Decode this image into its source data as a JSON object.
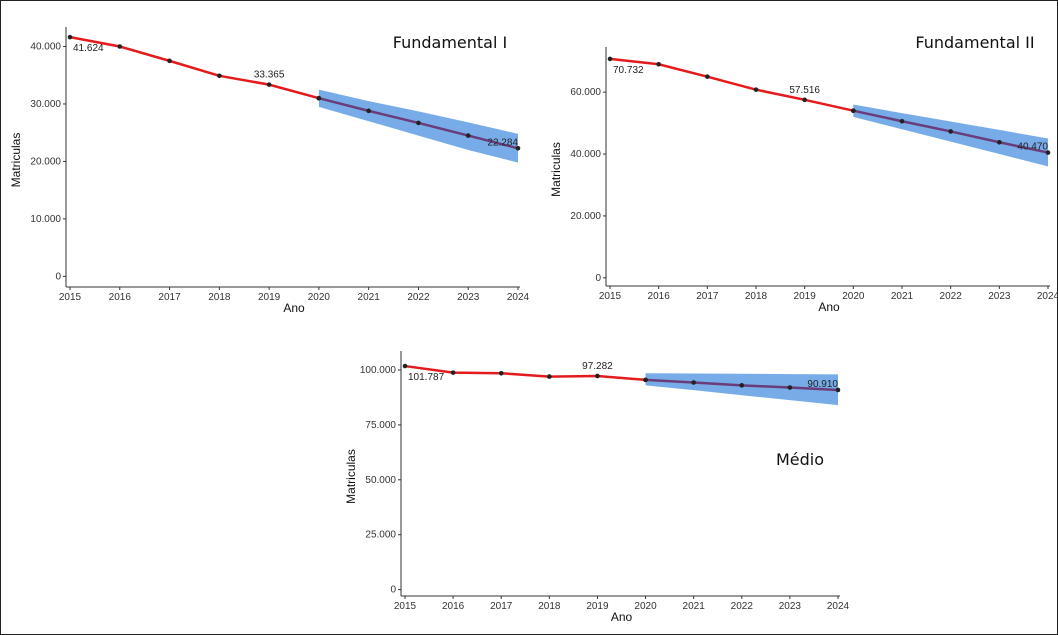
{
  "chart_data": [
    {
      "type": "line",
      "title": "Fundamental I",
      "xlabel": "Ano",
      "ylabel": "Matriculas",
      "x": [
        2015,
        2016,
        2017,
        2018,
        2019,
        2020,
        2021,
        2022,
        2023,
        2024
      ],
      "xlim": [
        2015,
        2024
      ],
      "xticks": [
        2015,
        2016,
        2017,
        2018,
        2019,
        2020,
        2021,
        2022,
        2023,
        2024
      ],
      "ylim": [
        -1500,
        42000
      ],
      "yticks": [
        0,
        {
          "value": 10000,
          "label": "10.000"
        },
        {
          "value": 20000,
          "label": "20.000"
        },
        {
          "value": 30000,
          "label": "30.000"
        },
        {
          "value": 40000,
          "label": "40.000"
        }
      ],
      "series": [
        {
          "color": "#e41a1c",
          "values": [
            41624,
            40000,
            37500,
            34900,
            33365,
            31000,
            null,
            null,
            null,
            null
          ],
          "value_labels": [
            "41.624",
            null,
            null,
            null,
            "33.365",
            null,
            null,
            null,
            null,
            null
          ]
        },
        {
          "color": "#6a3d7a",
          "values": [
            null,
            null,
            null,
            null,
            null,
            31000,
            28800,
            26700,
            24500,
            22284
          ],
          "value_labels": [
            null,
            null,
            null,
            null,
            null,
            null,
            null,
            null,
            null,
            "22.284"
          ]
        }
      ],
      "band": {
        "color": "#4a90e2",
        "lower": [
          null,
          null,
          null,
          null,
          null,
          29500,
          27000,
          24500,
          22000,
          19800
        ],
        "upper": [
          null,
          null,
          null,
          null,
          null,
          32500,
          30500,
          28700,
          26800,
          24800
        ]
      }
    },
    {
      "type": "line",
      "title": "Fundamental II",
      "xlabel": "Ano",
      "ylabel": "Matriculas",
      "x": [
        2015,
        2016,
        2017,
        2018,
        2019,
        2020,
        2021,
        2022,
        2023,
        2024
      ],
      "xlim": [
        2015,
        2024
      ],
      "xticks": [
        2015,
        2016,
        2017,
        2018,
        2019,
        2020,
        2021,
        2022,
        2023,
        2024
      ],
      "ylim": [
        -2000,
        72000
      ],
      "yticks": [
        0,
        {
          "value": 20000,
          "label": "20.000"
        },
        {
          "value": 40000,
          "label": "40.000"
        },
        {
          "value": 60000,
          "label": "60.000"
        }
      ],
      "series": [
        {
          "color": "#e41a1c",
          "values": [
            70732,
            69000,
            65000,
            60800,
            57516,
            54000,
            null,
            null,
            null,
            null
          ],
          "value_labels": [
            "70.732",
            null,
            null,
            null,
            "57.516",
            null,
            null,
            null,
            null,
            null
          ]
        },
        {
          "color": "#6a3d7a",
          "values": [
            null,
            null,
            null,
            null,
            null,
            54000,
            50600,
            47300,
            43800,
            40470
          ],
          "value_labels": [
            null,
            null,
            null,
            null,
            null,
            null,
            null,
            null,
            null,
            "40.470"
          ]
        }
      ],
      "band": {
        "color": "#4a90e2",
        "lower": [
          null,
          null,
          null,
          null,
          null,
          52000,
          48000,
          44000,
          40000,
          36000
        ],
        "upper": [
          null,
          null,
          null,
          null,
          null,
          56000,
          53200,
          50500,
          47800,
          45000
        ]
      }
    },
    {
      "type": "line",
      "title": "Médio",
      "xlabel": "Ano",
      "ylabel": "Matriculas",
      "x": [
        2015,
        2016,
        2017,
        2018,
        2019,
        2020,
        2021,
        2022,
        2023,
        2024
      ],
      "xlim": [
        2015,
        2024
      ],
      "xticks": [
        2015,
        2016,
        2017,
        2018,
        2019,
        2020,
        2021,
        2022,
        2023,
        2024
      ],
      "ylim": [
        -2000,
        105000
      ],
      "yticks": [
        0,
        {
          "value": 25000,
          "label": "25.000"
        },
        {
          "value": 50000,
          "label": "50.000"
        },
        {
          "value": 75000,
          "label": "75.000"
        },
        {
          "value": 100000,
          "label": "100.000"
        }
      ],
      "series": [
        {
          "color": "#e41a1c",
          "values": [
            101787,
            98800,
            98500,
            97000,
            97282,
            95500,
            null,
            null,
            null,
            null
          ],
          "value_labels": [
            "101.787",
            null,
            null,
            null,
            "97.282",
            null,
            null,
            null,
            null,
            null
          ]
        },
        {
          "color": "#6a3d7a",
          "values": [
            null,
            null,
            null,
            null,
            null,
            95500,
            94300,
            93000,
            92000,
            90910
          ],
          "value_labels": [
            null,
            null,
            null,
            null,
            null,
            null,
            null,
            null,
            null,
            "90.910"
          ]
        }
      ],
      "band": {
        "color": "#4a90e2",
        "lower": [
          null,
          null,
          null,
          null,
          null,
          93000,
          90800,
          88500,
          86300,
          84000
        ],
        "upper": [
          null,
          null,
          null,
          null,
          null,
          98500,
          98400,
          98300,
          98100,
          98000
        ]
      }
    }
  ]
}
